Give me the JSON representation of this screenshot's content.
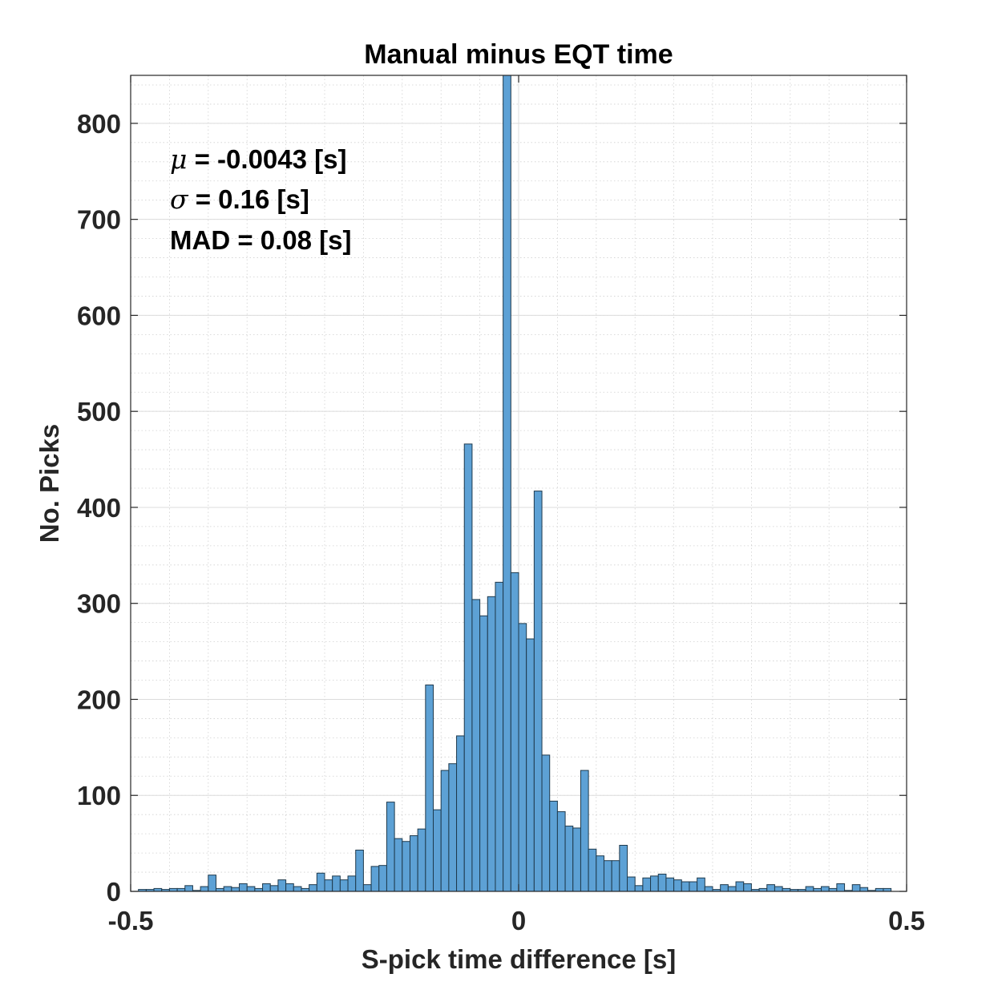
{
  "chart_data": {
    "type": "bar",
    "title": "Manual minus EQT time",
    "xlabel": "S-pick time difference [s]",
    "ylabel": "No. Picks",
    "xlim": [
      -0.5,
      0.5
    ],
    "ylim": [
      0,
      850
    ],
    "xticks": [
      "-0.5",
      "0",
      "0.5"
    ],
    "yticks": [
      "0",
      "100",
      "200",
      "300",
      "400",
      "500",
      "600",
      "700",
      "800"
    ],
    "bin_width": 0.01,
    "bin_start": -0.49,
    "values": [
      2,
      2,
      3,
      2,
      3,
      3,
      6,
      1,
      5,
      17,
      3,
      5,
      4,
      8,
      5,
      3,
      8,
      6,
      12,
      8,
      5,
      3,
      7,
      19,
      12,
      16,
      12,
      16,
      43,
      7,
      26,
      27,
      93,
      55,
      52,
      58,
      65,
      215,
      85,
      126,
      133,
      162,
      466,
      304,
      287,
      307,
      322,
      850,
      332,
      279,
      263,
      417,
      142,
      94,
      83,
      68,
      66,
      126,
      44,
      37,
      32,
      32,
      48,
      15,
      6,
      14,
      16,
      18,
      14,
      12,
      10,
      10,
      14,
      5,
      2,
      7,
      5,
      10,
      8,
      2,
      3,
      7,
      5,
      3,
      2,
      2,
      5,
      3,
      5,
      3,
      8,
      1,
      7,
      4,
      1,
      3,
      3
    ],
    "bar_color": "#5DA1D5",
    "edge_color": "#1F3A4D",
    "grid": true,
    "minor_grid": true
  },
  "annotations": {
    "mu_symbol": "μ",
    "mu_text": " = -0.0043 [s]",
    "sigma_symbol": "σ",
    "sigma_text": " = 0.16 [s]",
    "mad_text": "MAD = 0.08 [s]"
  }
}
